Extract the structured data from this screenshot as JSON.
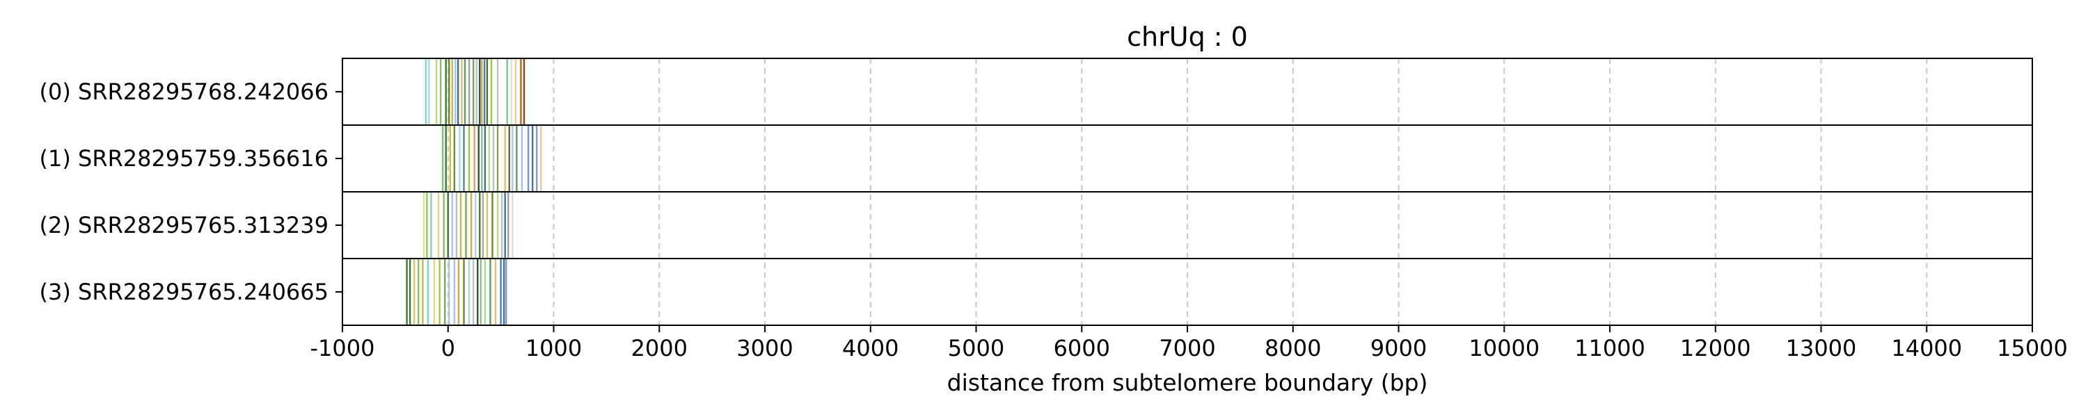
{
  "chart_data": {
    "type": "read-track-plot",
    "title": "chrUq : 0",
    "xlabel": "distance from subtelomere boundary (bp)",
    "xlim": [
      -1000,
      15000
    ],
    "xticks": [
      -1000,
      0,
      1000,
      2000,
      3000,
      4000,
      5000,
      6000,
      7000,
      8000,
      9000,
      10000,
      11000,
      12000,
      13000,
      14000,
      15000
    ],
    "xtick_labels": [
      "-1000",
      "0",
      "1000",
      "2000",
      "3000",
      "4000",
      "5000",
      "6000",
      "7000",
      "8000",
      "9000",
      "10000",
      "11000",
      "12000",
      "13000",
      "14000",
      "15000"
    ],
    "grid": "x-dashed",
    "reads": [
      {
        "label": "(0) SRR28295768.242066",
        "marks": [
          {
            "x": -210,
            "color": "#7fd3c6"
          },
          {
            "x": -180,
            "color": "#a6d8e8"
          },
          {
            "x": -110,
            "color": "#b7d98a"
          },
          {
            "x": -70,
            "color": "#8fbf5a"
          },
          {
            "x": -20,
            "color": "#2e7d32"
          },
          {
            "x": 10,
            "color": "#6b8e23"
          },
          {
            "x": 40,
            "color": "#c9b84a"
          },
          {
            "x": 70,
            "color": "#9ec3e6"
          },
          {
            "x": 95,
            "color": "#3d6fa8"
          },
          {
            "x": 130,
            "color": "#e0c070"
          },
          {
            "x": 160,
            "color": "#5b9b5b"
          },
          {
            "x": 200,
            "color": "#a0a0a0"
          },
          {
            "x": 240,
            "color": "#7aa84f"
          },
          {
            "x": 270,
            "color": "#b0c4de"
          },
          {
            "x": 300,
            "color": "#2f4f2f"
          },
          {
            "x": 320,
            "color": "#d8a64d"
          },
          {
            "x": 345,
            "color": "#4682b4"
          },
          {
            "x": 370,
            "color": "#556b2f"
          },
          {
            "x": 410,
            "color": "#9acd32"
          },
          {
            "x": 470,
            "color": "#c0c0c0"
          },
          {
            "x": 560,
            "color": "#8fbc8f"
          },
          {
            "x": 600,
            "color": "#cfe8cf"
          },
          {
            "x": 640,
            "color": "#e6d28c"
          },
          {
            "x": 690,
            "color": "#b5651d"
          },
          {
            "x": 720,
            "color": "#8b4513"
          }
        ]
      },
      {
        "label": "(1) SRR28295759.356616",
        "marks": [
          {
            "x": -50,
            "color": "#7fbf7f"
          },
          {
            "x": -20,
            "color": "#2e7d32"
          },
          {
            "x": 20,
            "color": "#c9b84a"
          },
          {
            "x": 60,
            "color": "#6b8e23"
          },
          {
            "x": 110,
            "color": "#a6d8e8"
          },
          {
            "x": 150,
            "color": "#4682b4"
          },
          {
            "x": 200,
            "color": "#9acd32"
          },
          {
            "x": 250,
            "color": "#d8a64d"
          },
          {
            "x": 290,
            "color": "#2f4f2f"
          },
          {
            "x": 320,
            "color": "#8fbc8f"
          },
          {
            "x": 350,
            "color": "#3d6fa8"
          },
          {
            "x": 390,
            "color": "#b7d98a"
          },
          {
            "x": 430,
            "color": "#c0c0c0"
          },
          {
            "x": 470,
            "color": "#7aa84f"
          },
          {
            "x": 540,
            "color": "#e0c070"
          },
          {
            "x": 580,
            "color": "#556b2f"
          },
          {
            "x": 610,
            "color": "#b0c4de"
          },
          {
            "x": 650,
            "color": "#5b9b5b"
          },
          {
            "x": 700,
            "color": "#9ec3e6"
          },
          {
            "x": 760,
            "color": "#6495ed"
          },
          {
            "x": 800,
            "color": "#4a6fa5"
          },
          {
            "x": 840,
            "color": "#7f9fbf"
          },
          {
            "x": 880,
            "color": "#e8c8a0"
          }
        ]
      },
      {
        "label": "(2) SRR28295765.313239",
        "marks": [
          {
            "x": -230,
            "color": "#cfe8a8"
          },
          {
            "x": -200,
            "color": "#9acd32"
          },
          {
            "x": -160,
            "color": "#7fd3c6"
          },
          {
            "x": -90,
            "color": "#e6d28c"
          },
          {
            "x": -40,
            "color": "#8fbf5a"
          },
          {
            "x": 0,
            "color": "#2e7d32"
          },
          {
            "x": 40,
            "color": "#b0c4de"
          },
          {
            "x": 80,
            "color": "#9ec3e6"
          },
          {
            "x": 120,
            "color": "#c9b84a"
          },
          {
            "x": 170,
            "color": "#7aa84f"
          },
          {
            "x": 220,
            "color": "#d8a64d"
          },
          {
            "x": 260,
            "color": "#a6d8e8"
          },
          {
            "x": 300,
            "color": "#556b2f"
          },
          {
            "x": 330,
            "color": "#8fbc8f"
          },
          {
            "x": 370,
            "color": "#e0c070"
          },
          {
            "x": 420,
            "color": "#6b8e23"
          },
          {
            "x": 470,
            "color": "#b7d98a"
          },
          {
            "x": 510,
            "color": "#c0c0c0"
          },
          {
            "x": 540,
            "color": "#3d6fa8"
          },
          {
            "x": 570,
            "color": "#a0a0a0"
          },
          {
            "x": 610,
            "color": "#d0e0f0"
          }
        ]
      },
      {
        "label": "(3) SRR28295765.240665",
        "marks": [
          {
            "x": -390,
            "color": "#556b2f"
          },
          {
            "x": -360,
            "color": "#2e7d32"
          },
          {
            "x": -320,
            "color": "#e0c070"
          },
          {
            "x": -280,
            "color": "#8fbf5a"
          },
          {
            "x": -240,
            "color": "#c9b84a"
          },
          {
            "x": -190,
            "color": "#7fd3c6"
          },
          {
            "x": -130,
            "color": "#e6d28c"
          },
          {
            "x": -80,
            "color": "#9acd32"
          },
          {
            "x": -30,
            "color": "#7aa84f"
          },
          {
            "x": 10,
            "color": "#b0c4de"
          },
          {
            "x": 60,
            "color": "#9ec3e6"
          },
          {
            "x": 100,
            "color": "#d8a64d"
          },
          {
            "x": 150,
            "color": "#6b8e23"
          },
          {
            "x": 200,
            "color": "#a6d8e8"
          },
          {
            "x": 240,
            "color": "#c0c0c0"
          },
          {
            "x": 280,
            "color": "#2f4f2f"
          },
          {
            "x": 310,
            "color": "#8fbc8f"
          },
          {
            "x": 350,
            "color": "#b7d98a"
          },
          {
            "x": 400,
            "color": "#5b9b5b"
          },
          {
            "x": 450,
            "color": "#e0c070"
          },
          {
            "x": 500,
            "color": "#4682b4"
          },
          {
            "x": 530,
            "color": "#3d6fa8"
          },
          {
            "x": 550,
            "color": "#7f9fbf"
          }
        ]
      }
    ]
  }
}
